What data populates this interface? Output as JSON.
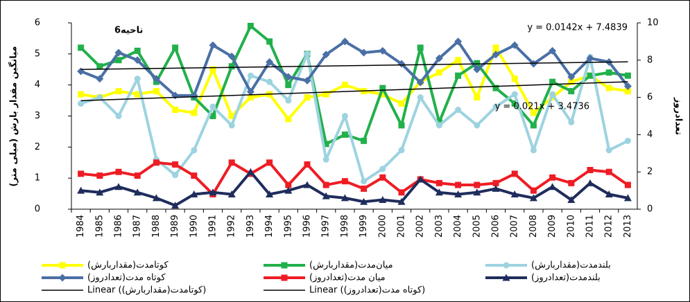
{
  "chart_data": {
    "type": "line",
    "title": "6ناحیه",
    "y_label": "میانگین مقدار بارش (میلی متر)",
    "y2_label": "تعدادروز",
    "categories": [
      "1984",
      "1985",
      "1986",
      "1987",
      "1988",
      "1989",
      "1990",
      "1991",
      "1992",
      "1993",
      "1994",
      "1995",
      "1996",
      "1997",
      "1998",
      "1999",
      "2000",
      "2001",
      "2002",
      "2003",
      "2004",
      "2005",
      "2006",
      "2007",
      "2008",
      "2009",
      "2010",
      "2011",
      "2012",
      "2013"
    ],
    "ylim": [
      0,
      6
    ],
    "yticks": [
      0,
      1,
      2,
      3,
      4,
      5,
      6
    ],
    "y2lim": [
      0,
      10
    ],
    "y2ticks": [
      0,
      2,
      4,
      6,
      8,
      10
    ],
    "grid": false,
    "series": [
      {
        "name": "کوتامدت(مقداربارش)",
        "color": "#ffff00",
        "marker": "square",
        "values": [
          3.7,
          3.6,
          3.8,
          3.7,
          3.8,
          3.2,
          3.1,
          4.5,
          3.0,
          3.6,
          3.7,
          2.9,
          3.6,
          3.7,
          4.0,
          3.8,
          3.7,
          3.4,
          4.1,
          4.4,
          4.8,
          3.6,
          5.2,
          4.2,
          3.1,
          3.6,
          4.1,
          4.3,
          3.9,
          3.8
        ]
      },
      {
        "name": "میان‌مدت(مقداربارش)",
        "color": "#22b04b",
        "marker": "square",
        "values": [
          5.2,
          4.6,
          4.8,
          5.1,
          4.1,
          5.2,
          3.6,
          3.0,
          4.6,
          5.9,
          5.4,
          4.0,
          5.0,
          2.1,
          2.4,
          2.2,
          3.9,
          2.7,
          5.2,
          2.8,
          4.3,
          4.7,
          3.9,
          3.4,
          2.7,
          4.1,
          3.8,
          4.3,
          4.4,
          4.3
        ]
      },
      {
        "name": "بلندمدت(مقداربارش)",
        "color": "#9dd3e0",
        "marker": "circle",
        "values": [
          3.4,
          3.6,
          3.0,
          4.2,
          1.6,
          1.1,
          1.9,
          3.3,
          2.7,
          4.3,
          4.1,
          3.5,
          5.0,
          1.6,
          3.0,
          0.9,
          1.3,
          1.9,
          3.6,
          2.7,
          3.2,
          2.7,
          3.3,
          3.7,
          1.9,
          3.7,
          2.8,
          4.9,
          1.9,
          2.2
        ]
      },
      {
        "name": "کوتاه مدت(تعدادروز)",
        "color": "#4a6fa5",
        "marker": "diamond",
        "axis": "y2",
        "values": [
          7.4,
          7.0,
          8.4,
          8.0,
          7.0,
          6.1,
          6.1,
          8.8,
          8.2,
          6.3,
          7.9,
          7.1,
          6.9,
          8.3,
          9.0,
          8.4,
          8.5,
          7.8,
          6.8,
          8.1,
          9.0,
          7.5,
          8.3,
          8.8,
          7.8,
          8.5,
          7.1,
          8.1,
          7.9,
          6.6
        ]
      },
      {
        "name": "میان مدت(تعدادروز)",
        "color": "#ee1c24",
        "marker": "square",
        "axis": "y2",
        "values": [
          1.9,
          1.8,
          2.0,
          1.8,
          2.5,
          2.4,
          1.8,
          0.8,
          2.5,
          1.9,
          2.5,
          1.3,
          2.4,
          1.3,
          1.5,
          1.1,
          1.7,
          0.9,
          1.6,
          1.4,
          1.3,
          1.3,
          1.4,
          1.9,
          1.0,
          1.7,
          1.4,
          2.1,
          2.0,
          1.3
        ]
      },
      {
        "name": "بلندمدت(تعدادروز)",
        "color": "#1f2d5c",
        "marker": "triangle",
        "axis": "y2",
        "values": [
          1.0,
          0.9,
          1.2,
          0.9,
          0.6,
          0.2,
          0.8,
          0.9,
          0.8,
          2.0,
          0.8,
          1.0,
          1.3,
          0.7,
          0.6,
          0.4,
          0.5,
          0.4,
          1.6,
          0.9,
          0.8,
          0.9,
          1.1,
          0.8,
          0.6,
          1.2,
          0.5,
          1.4,
          0.8,
          0.6
        ]
      }
    ],
    "trendlines": [
      {
        "name": "Linear (کوتامدت(مقداربارش))",
        "color": "#000000",
        "equation": "y = 0.021x + 3.4736",
        "slope": 0.021,
        "intercept": 3.4736
      },
      {
        "name": "Linear (کوتاه مدت(تعدادروز))",
        "color": "#000000",
        "equation": "y = 0.0142x + 7.4839",
        "slope": 0.0142,
        "intercept": 7.4839,
        "axis": "y2"
      }
    ]
  }
}
